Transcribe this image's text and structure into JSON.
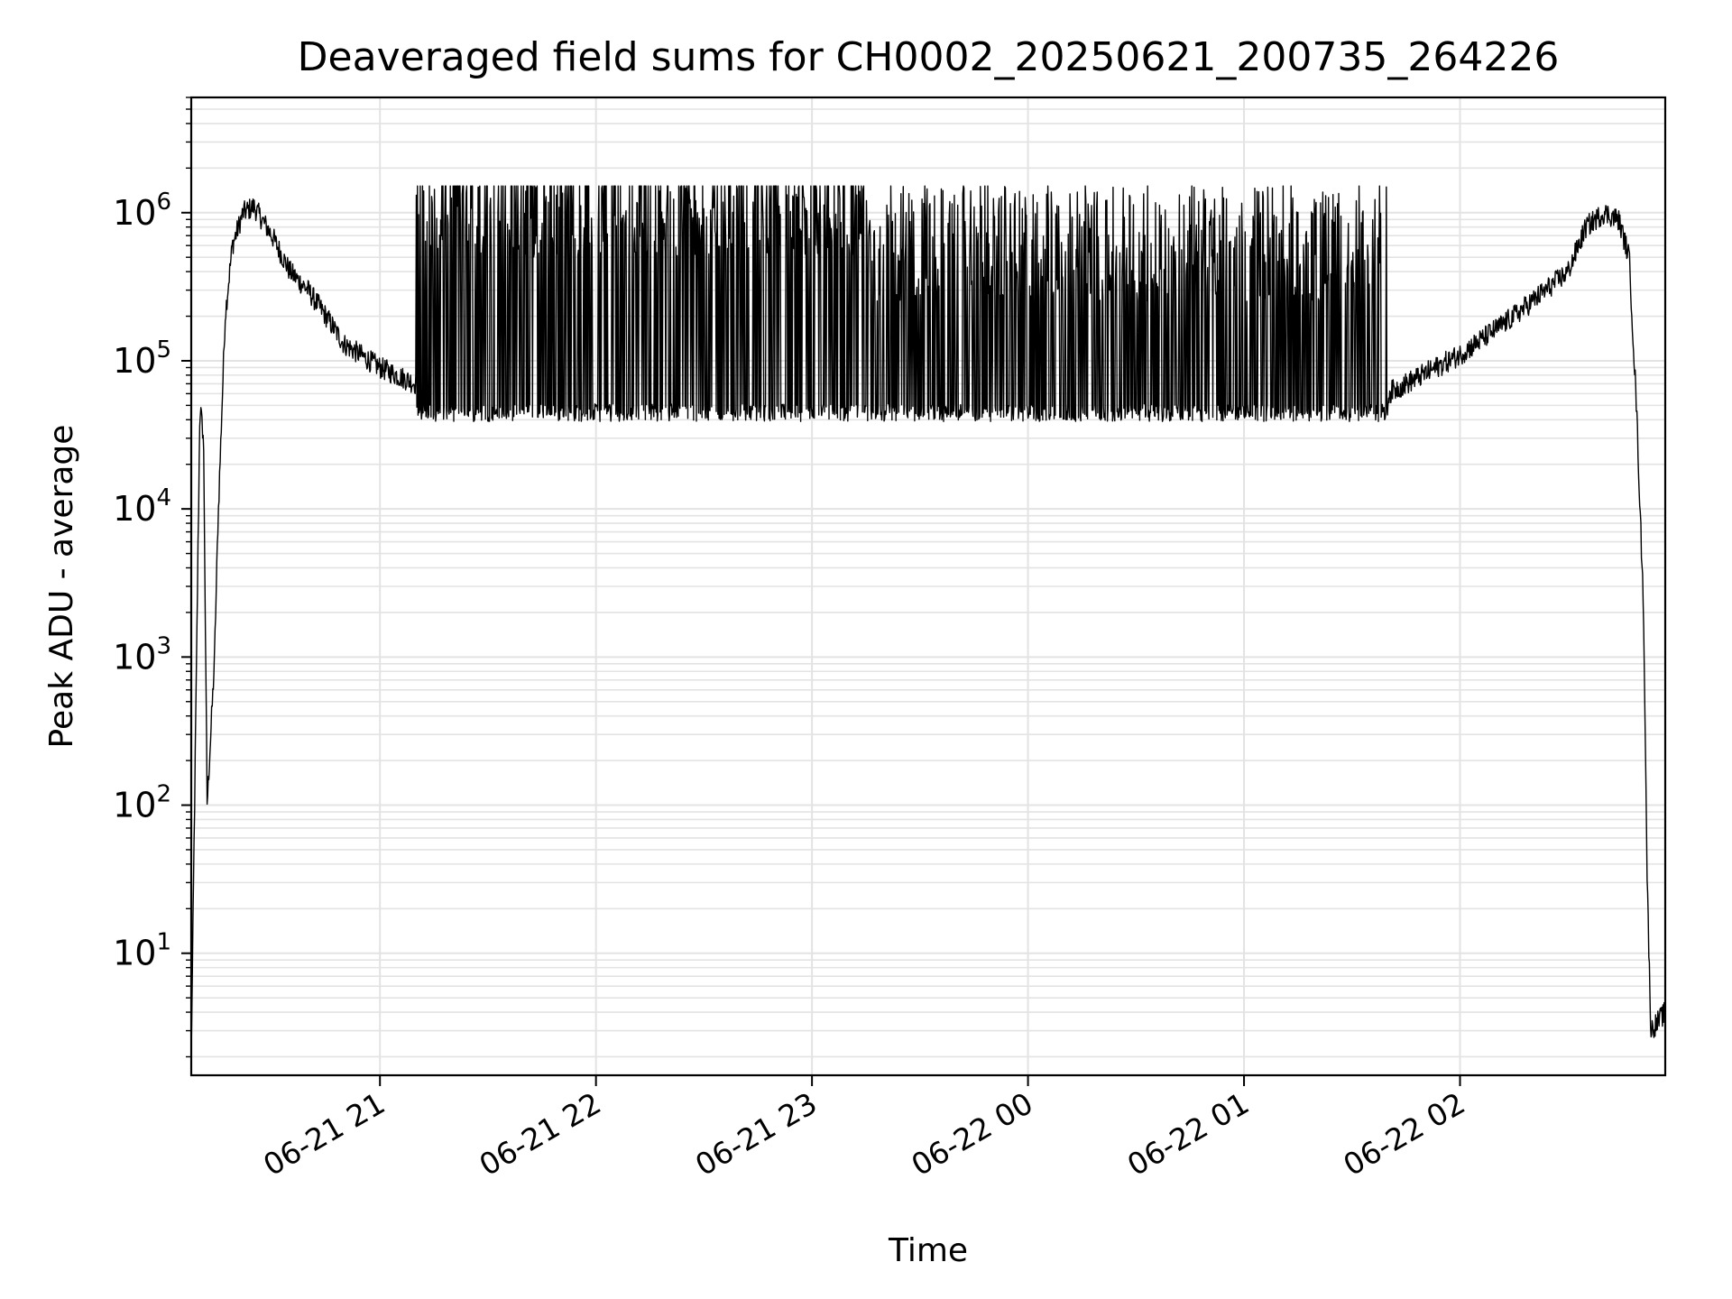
{
  "chart_data": {
    "type": "line",
    "title": "Deaveraged field sums for CH0002_20250621_200735_264226",
    "xlabel": "Time",
    "ylabel": "Peak ADU - average",
    "yscale": "log",
    "ylim": [
      1.5,
      6000000
    ],
    "xlim": [
      "2025-06-21 20:07:35",
      "2025-06-22 02:57:00"
    ],
    "grid": true,
    "line_color": "#000000",
    "grid_color": "#e3e3e3",
    "x_ticks": [
      "06-21 21",
      "06-22 00",
      "06-21 22",
      "06-21 23",
      "06-22 01",
      "06-22 02"
    ],
    "y_ticks": [
      {
        "base": "10",
        "exp": "1",
        "value": 10
      },
      {
        "base": "10",
        "exp": "2",
        "value": 100
      },
      {
        "base": "10",
        "exp": "3",
        "value": 1000
      },
      {
        "base": "10",
        "exp": "4",
        "value": 10000
      },
      {
        "base": "10",
        "exp": "5",
        "value": 100000
      },
      {
        "base": "10",
        "exp": "6",
        "value": 1000000
      }
    ],
    "series": [
      {
        "x": [
          "2025-06-21 20:07:35",
          "2025-06-21 20:10:00",
          "2025-06-21 20:11:00",
          "2025-06-21 20:12:00",
          "2025-06-21 20:13:00",
          "2025-06-21 20:14:00",
          "2025-06-21 20:15:00",
          "2025-06-21 20:17:00",
          "2025-06-21 20:19:00",
          "2025-06-21 20:22:00",
          "2025-06-21 20:25:00",
          "2025-06-21 20:30:00",
          "2025-06-21 20:35:00",
          "2025-06-21 20:40:00",
          "2025-06-21 20:45:00",
          "2025-06-21 20:50:00",
          "2025-06-21 21:00:00",
          "2025-06-21 21:10:00",
          "2025-06-21 21:20:00",
          "2025-06-21 21:30:00",
          "2025-06-21 21:45:00",
          "2025-06-21 22:00:00",
          "2025-06-21 22:30:00",
          "2025-06-21 23:00:00",
          "2025-06-21 23:30:00",
          "2025-06-22 00:00:00",
          "2025-06-22 00:30:00",
          "2025-06-22 01:00:00",
          "2025-06-22 01:30:00",
          "2025-06-22 01:45:00",
          "2025-06-22 02:00:00",
          "2025-06-22 02:15:00",
          "2025-06-22 02:30:00",
          "2025-06-22 02:35:00",
          "2025-06-22 02:40:00",
          "2025-06-22 02:44:00",
          "2025-06-22 02:47:00",
          "2025-06-22 02:49:00",
          "2025-06-22 02:51:00",
          "2025-06-22 02:52:00",
          "2025-06-22 02:53:00",
          "2025-06-22 02:57:00"
        ],
        "y": [
          2,
          50000,
          30000,
          100,
          300,
          900,
          8000,
          200000,
          600000,
          1000000,
          1100000,
          700000,
          400000,
          300000,
          200000,
          130000,
          90000,
          70000,
          55000,
          1300000,
          50000,
          1200000,
          45000,
          1300000,
          50000,
          45000,
          1000000,
          45000,
          45000,
          70000,
          110000,
          200000,
          400000,
          800000,
          1000000,
          900000,
          500000,
          50000,
          2000,
          30,
          3,
          4
        ]
      }
    ]
  }
}
